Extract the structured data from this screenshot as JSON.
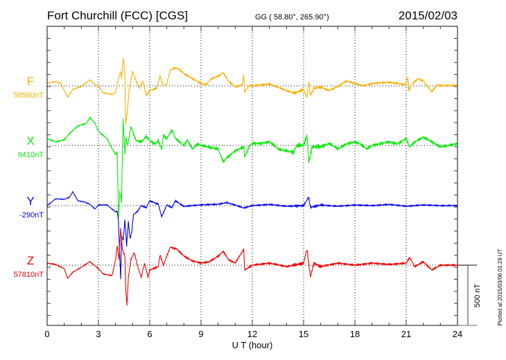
{
  "header": {
    "station": "Fort Churchill (FCC)  [CGS]",
    "coords": "GG ( 58.80°, 265.90°)",
    "date": "2015/02/03"
  },
  "footer": {
    "plotted": "Plotted at 2015/03/06 01:29 UT",
    "scale_label": "500 nT"
  },
  "chart_data": {
    "type": "line",
    "xlabel": "U T (hour)",
    "xlim": [
      0,
      24
    ],
    "x_ticks": [
      "0",
      "3",
      "6",
      "9",
      "12",
      "15",
      "18",
      "21",
      "24"
    ],
    "y_tick_step_nT": 100,
    "scale_bar_nT": 500,
    "grid": "dotted vertical every 3 h, dotted baseline per component",
    "series": [
      {
        "name": "F",
        "baseline_label": "58580nT",
        "color": "#FFB000",
        "noise_nT": 10,
        "points": [
          [
            0,
            25
          ],
          [
            0.5,
            35
          ],
          [
            0.8,
            20
          ],
          [
            1.2,
            -95
          ],
          [
            1.5,
            -30
          ],
          [
            2.0,
            -5
          ],
          [
            2.5,
            50
          ],
          [
            2.8,
            10
          ],
          [
            3.0,
            -5
          ],
          [
            3.3,
            -60
          ],
          [
            3.8,
            -70
          ],
          [
            4.0,
            -55
          ],
          [
            4.2,
            80
          ],
          [
            4.3,
            120
          ],
          [
            4.35,
            60
          ],
          [
            4.45,
            230
          ],
          [
            4.5,
            170
          ],
          [
            4.55,
            60
          ],
          [
            4.6,
            -320
          ],
          [
            4.7,
            -200
          ],
          [
            4.8,
            -30
          ],
          [
            5.0,
            120
          ],
          [
            5.2,
            40
          ],
          [
            5.4,
            -20
          ],
          [
            5.6,
            40
          ],
          [
            5.8,
            -80
          ],
          [
            6.0,
            -40
          ],
          [
            6.4,
            -20
          ],
          [
            6.6,
            80
          ],
          [
            6.8,
            0
          ],
          [
            7.0,
            20
          ],
          [
            7.2,
            130
          ],
          [
            7.5,
            150
          ],
          [
            7.7,
            140
          ],
          [
            8.0,
            100
          ],
          [
            8.5,
            60
          ],
          [
            9.0,
            20
          ],
          [
            9.3,
            10
          ],
          [
            9.6,
            60
          ],
          [
            10.0,
            80
          ],
          [
            10.3,
            110
          ],
          [
            10.6,
            40
          ],
          [
            11.0,
            -10
          ],
          [
            11.4,
            10
          ],
          [
            11.5,
            85
          ],
          [
            11.55,
            -50
          ],
          [
            11.8,
            0
          ],
          [
            12,
            0
          ],
          [
            13,
            15
          ],
          [
            13.5,
            -10
          ],
          [
            14,
            -40
          ],
          [
            14.5,
            -60
          ],
          [
            15,
            -30
          ],
          [
            15.2,
            -100
          ],
          [
            15.3,
            40
          ],
          [
            15.4,
            -80
          ],
          [
            15.6,
            -20
          ],
          [
            16,
            -10
          ],
          [
            16.5,
            -40
          ],
          [
            17,
            -5
          ],
          [
            17.5,
            40
          ],
          [
            18,
            20
          ],
          [
            18.5,
            0
          ],
          [
            19,
            20
          ],
          [
            20,
            30
          ],
          [
            21,
            10
          ],
          [
            21.1,
            80
          ],
          [
            21.15,
            -40
          ],
          [
            21.3,
            10
          ],
          [
            21.7,
            60
          ],
          [
            22,
            40
          ],
          [
            22.5,
            -50
          ],
          [
            22.8,
            10
          ],
          [
            23,
            0
          ],
          [
            24,
            5
          ]
        ]
      },
      {
        "name": "X",
        "baseline_label": "9410nT",
        "color": "#00EE00",
        "noise_nT": 14,
        "points": [
          [
            0,
            57
          ],
          [
            0.5,
            29
          ],
          [
            1.0,
            46
          ],
          [
            1.3,
            98
          ],
          [
            1.8,
            161
          ],
          [
            2.3,
            184
          ],
          [
            2.5,
            230
          ],
          [
            2.8,
            184
          ],
          [
            3.0,
            115
          ],
          [
            3.5,
            57
          ],
          [
            3.8,
            -29
          ],
          [
            4.0,
            -75
          ],
          [
            4.1,
            -52
          ],
          [
            4.17,
            -614
          ],
          [
            4.25,
            -385
          ],
          [
            4.35,
            -460
          ],
          [
            4.45,
            213
          ],
          [
            4.55,
            -75
          ],
          [
            4.6,
            69
          ],
          [
            4.7,
            0
          ],
          [
            4.9,
            155
          ],
          [
            5.2,
            40
          ],
          [
            5.5,
            29
          ],
          [
            5.8,
            75
          ],
          [
            6.0,
            40
          ],
          [
            6.3,
            12
          ],
          [
            6.5,
            40
          ],
          [
            6.7,
            -35
          ],
          [
            6.8,
            86
          ],
          [
            7.0,
            57
          ],
          [
            7.3,
            127
          ],
          [
            7.5,
            57
          ],
          [
            8.0,
            0
          ],
          [
            8.2,
            46
          ],
          [
            8.5,
            -29
          ],
          [
            8.8,
            12
          ],
          [
            9,
            0
          ],
          [
            9.5,
            -17
          ],
          [
            10,
            -29
          ],
          [
            10.3,
            -138
          ],
          [
            10.5,
            -104
          ],
          [
            11,
            -46
          ],
          [
            11.5,
            -12
          ],
          [
            11.55,
            -98
          ],
          [
            11.8,
            -12
          ],
          [
            12,
            17
          ],
          [
            12.5,
            17
          ],
          [
            13,
            29
          ],
          [
            13.3,
            0
          ],
          [
            13.5,
            -29
          ],
          [
            14,
            -46
          ],
          [
            14.4,
            -58
          ],
          [
            14.6,
            0
          ],
          [
            15,
            0
          ],
          [
            15.2,
            86
          ],
          [
            15.3,
            -144
          ],
          [
            15.5,
            -12
          ],
          [
            16,
            -12
          ],
          [
            16.5,
            17
          ],
          [
            17,
            -29
          ],
          [
            17.5,
            12
          ],
          [
            18,
            29
          ],
          [
            18.3,
            12
          ],
          [
            18.7,
            -29
          ],
          [
            19,
            0
          ],
          [
            20,
            29
          ],
          [
            20.5,
            12
          ],
          [
            21,
            57
          ],
          [
            21.2,
            -12
          ],
          [
            21.5,
            29
          ],
          [
            22,
            69
          ],
          [
            22.5,
            29
          ],
          [
            23,
            -12
          ],
          [
            23.5,
            0
          ],
          [
            24,
            17
          ]
        ]
      },
      {
        "name": "Y",
        "baseline_label": "-290nT",
        "color": "#0000EE",
        "noise_nT": 8,
        "points": [
          [
            0,
            0
          ],
          [
            0.5,
            57
          ],
          [
            1,
            52
          ],
          [
            1.3,
            69
          ],
          [
            1.5,
            115
          ],
          [
            1.8,
            40
          ],
          [
            2.2,
            29
          ],
          [
            2.5,
            12
          ],
          [
            2.8,
            -29
          ],
          [
            3.0,
            6
          ],
          [
            3.5,
            6
          ],
          [
            4.0,
            -52
          ],
          [
            4.1,
            -46
          ],
          [
            4.17,
            -132
          ],
          [
            4.3,
            -610
          ],
          [
            4.35,
            -250
          ],
          [
            4.45,
            -288
          ],
          [
            4.55,
            -120
          ],
          [
            4.65,
            -334
          ],
          [
            4.75,
            -132
          ],
          [
            4.85,
            -276
          ],
          [
            4.95,
            -218
          ],
          [
            5.05,
            -75
          ],
          [
            5.3,
            -46
          ],
          [
            5.5,
            0
          ],
          [
            5.8,
            -17
          ],
          [
            6.0,
            40
          ],
          [
            6.5,
            12
          ],
          [
            6.7,
            -92
          ],
          [
            7.0,
            6
          ],
          [
            7.3,
            -17
          ],
          [
            7.5,
            40
          ],
          [
            8.0,
            -6
          ],
          [
            9,
            6
          ],
          [
            10,
            12
          ],
          [
            10.5,
            25
          ],
          [
            11,
            5
          ],
          [
            11.5,
            -20
          ],
          [
            12,
            0
          ],
          [
            13,
            10
          ],
          [
            14,
            -5
          ],
          [
            15,
            0
          ],
          [
            15.3,
            70
          ],
          [
            15.4,
            -15
          ],
          [
            16,
            5
          ],
          [
            17,
            -5
          ],
          [
            18,
            5
          ],
          [
            19,
            0
          ],
          [
            20,
            10
          ],
          [
            21,
            -5
          ],
          [
            22,
            5
          ],
          [
            23,
            0
          ],
          [
            24,
            0
          ]
        ]
      },
      {
        "name": "Z",
        "baseline_label": "57810nT",
        "color": "#EE0000",
        "noise_nT": 10,
        "points": [
          [
            0,
            17
          ],
          [
            0.5,
            6
          ],
          [
            1.0,
            -29
          ],
          [
            1.2,
            -109
          ],
          [
            1.5,
            -58
          ],
          [
            2.0,
            -17
          ],
          [
            2.5,
            29
          ],
          [
            3.0,
            -29
          ],
          [
            3.3,
            -75
          ],
          [
            3.8,
            -86
          ],
          [
            4.0,
            46
          ],
          [
            4.1,
            161
          ],
          [
            4.2,
            46
          ],
          [
            4.3,
            305
          ],
          [
            4.4,
            132
          ],
          [
            4.55,
            75
          ],
          [
            4.6,
            -213
          ],
          [
            4.67,
            -328
          ],
          [
            4.75,
            -98
          ],
          [
            4.9,
            46
          ],
          [
            5.1,
            104
          ],
          [
            5.3,
            -12
          ],
          [
            5.5,
            -98
          ],
          [
            5.7,
            17
          ],
          [
            5.9,
            -98
          ],
          [
            6.0,
            -40
          ],
          [
            6.5,
            -12
          ],
          [
            6.6,
            86
          ],
          [
            6.8,
            0
          ],
          [
            7.2,
            150
          ],
          [
            7.6,
            132
          ],
          [
            8,
            75
          ],
          [
            8.5,
            35
          ],
          [
            9,
            17
          ],
          [
            9.5,
            29
          ],
          [
            10,
            75
          ],
          [
            10.3,
            115
          ],
          [
            10.6,
            46
          ],
          [
            11,
            17
          ],
          [
            11.5,
            132
          ],
          [
            11.55,
            -40
          ],
          [
            12,
            0
          ],
          [
            13,
            17
          ],
          [
            14,
            -12
          ],
          [
            15,
            17
          ],
          [
            15.2,
            132
          ],
          [
            15.4,
            -98
          ],
          [
            15.6,
            17
          ],
          [
            16,
            -12
          ],
          [
            17,
            17
          ],
          [
            18,
            0
          ],
          [
            19,
            17
          ],
          [
            20,
            6
          ],
          [
            21,
            17
          ],
          [
            21.2,
            63
          ],
          [
            21.5,
            -12
          ],
          [
            22,
            29
          ],
          [
            22.5,
            -40
          ],
          [
            23,
            0
          ],
          [
            24,
            0
          ]
        ]
      }
    ]
  }
}
